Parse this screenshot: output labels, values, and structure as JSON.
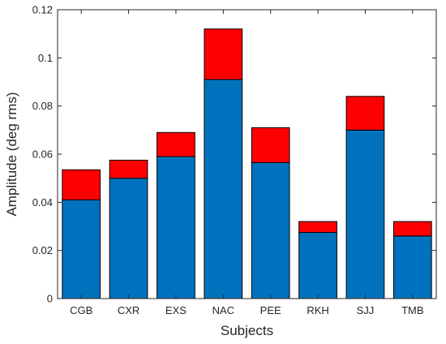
{
  "chart_data": {
    "type": "bar",
    "stacked": true,
    "categories": [
      "CGB",
      "CXR",
      "EXS",
      "NAC",
      "PEE",
      "RKH",
      "SJJ",
      "TMB"
    ],
    "series": [
      {
        "values": [
          0.041,
          0.05,
          0.059,
          0.091,
          0.0565,
          0.0275,
          0.07,
          0.026
        ],
        "color": "#0072BD"
      },
      {
        "values": [
          0.0125,
          0.0075,
          0.01,
          0.021,
          0.0145,
          0.0045,
          0.014,
          0.006
        ],
        "color": "#FF0000"
      }
    ],
    "xlabel": "Subjects",
    "ylabel": "Amplitude (deg rms)",
    "ylim": [
      0,
      0.12
    ],
    "yticks": [
      0,
      0.02,
      0.04,
      0.06,
      0.08,
      0.1,
      0.12
    ],
    "ytick_labels": [
      "0",
      "0.02",
      "0.04",
      "0.06",
      "0.08",
      "0.1",
      "0.12"
    ],
    "grid": false,
    "legend": "none"
  }
}
